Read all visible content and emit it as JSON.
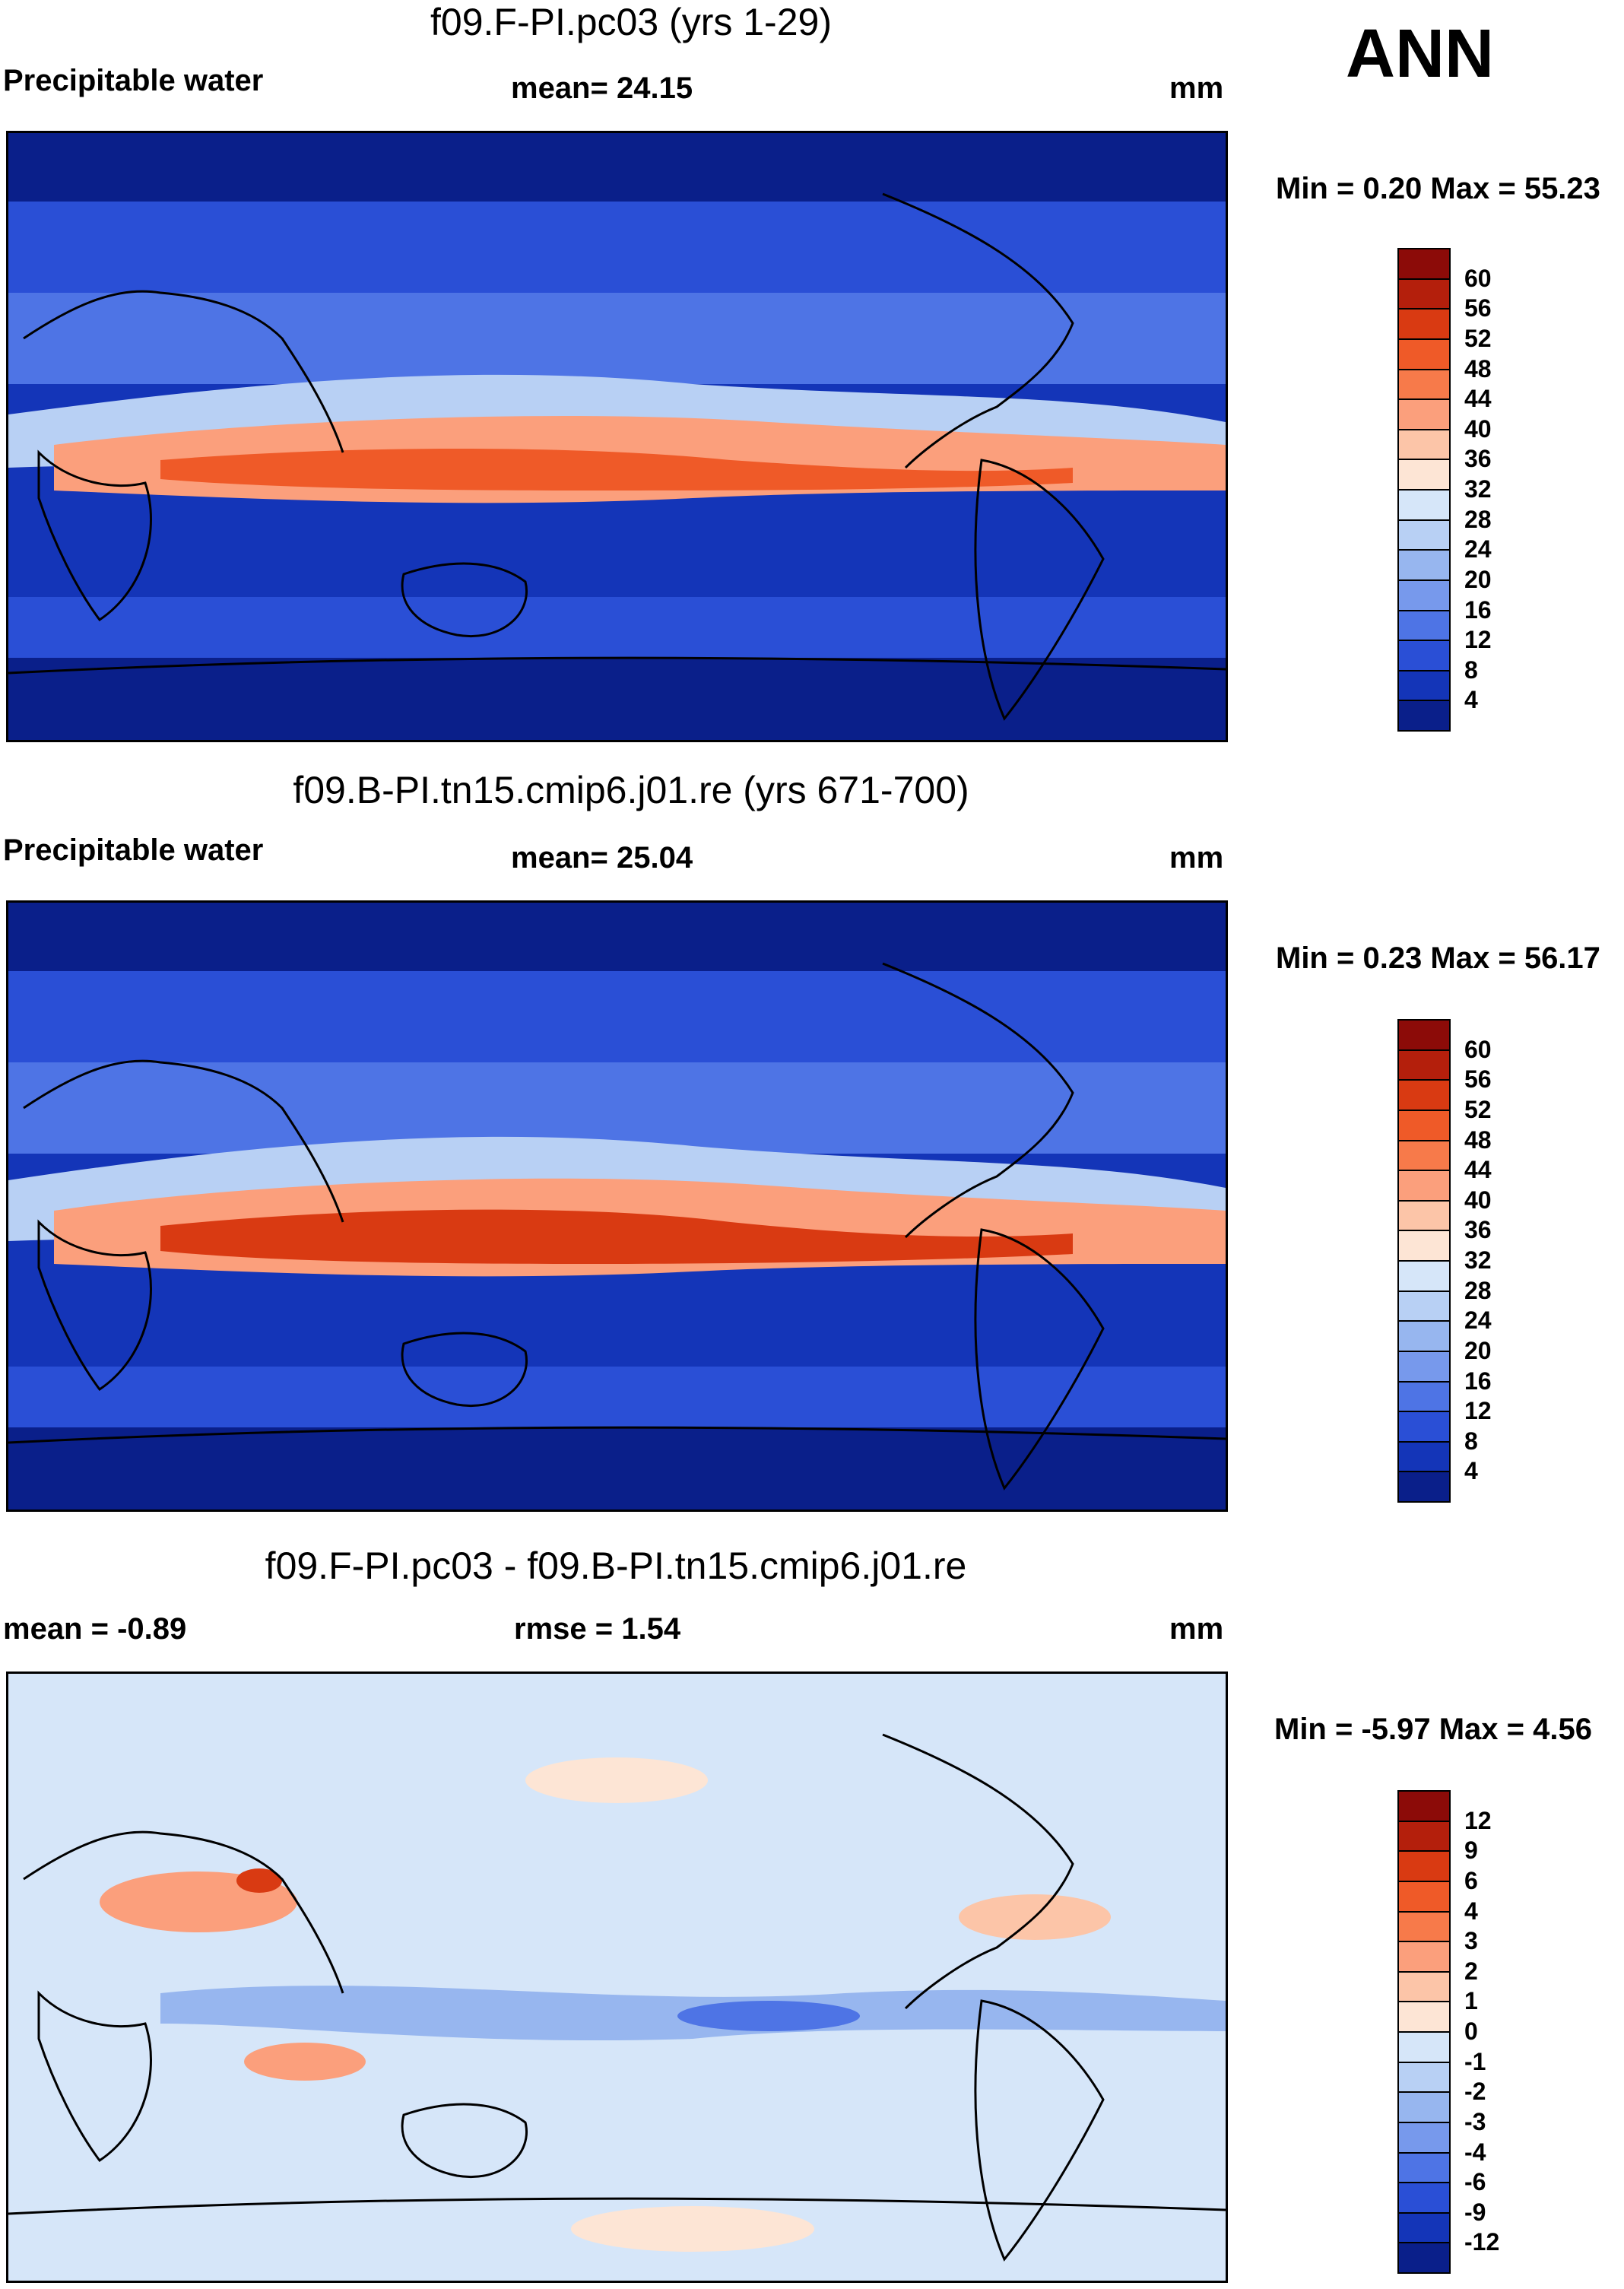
{
  "page_label": "ANN",
  "chart_data": [
    {
      "type": "heatmap",
      "title": "f09.F-PI.pc03 (yrs 1-29)",
      "variable": "Precipitable water",
      "stats": {
        "left_label": "Precipitable water",
        "mid_label": "mean=  24.15",
        "units": "mm"
      },
      "minmax": "Min =   0.20 Max =  55.23",
      "colorbar": {
        "levels": [
          "60",
          "56",
          "52",
          "48",
          "44",
          "40",
          "36",
          "32",
          "28",
          "24",
          "20",
          "16",
          "12",
          "8",
          "4"
        ],
        "colors": [
          "#8c0b08",
          "#b41f0c",
          "#d93a12",
          "#ef5a28",
          "#f77a4a",
          "#fb9f7c",
          "#fcc5a8",
          "#fde5d5",
          "#d6e6f9",
          "#b8d0f4",
          "#97b6ef",
          "#7799ec",
          "#4e74e5",
          "#2a4fd6",
          "#1435b8",
          "#0a1f8a"
        ]
      }
    },
    {
      "type": "heatmap",
      "title": "f09.B-PI.tn15.cmip6.j01.re (yrs 671-700)",
      "variable": "Precipitable water",
      "stats": {
        "left_label": "Precipitable water",
        "mid_label": "mean=  25.04",
        "units": "mm"
      },
      "minmax": "Min =   0.23 Max =  56.17",
      "colorbar": {
        "levels": [
          "60",
          "56",
          "52",
          "48",
          "44",
          "40",
          "36",
          "32",
          "28",
          "24",
          "20",
          "16",
          "12",
          "8",
          "4"
        ],
        "colors": [
          "#8c0b08",
          "#b41f0c",
          "#d93a12",
          "#ef5a28",
          "#f77a4a",
          "#fb9f7c",
          "#fcc5a8",
          "#fde5d5",
          "#d6e6f9",
          "#b8d0f4",
          "#97b6ef",
          "#7799ec",
          "#4e74e5",
          "#2a4fd6",
          "#1435b8",
          "#0a1f8a"
        ]
      }
    },
    {
      "type": "heatmap",
      "title": "f09.F-PI.pc03 - f09.B-PI.tn15.cmip6.j01.re",
      "stats": {
        "left_label": "mean =  -0.89",
        "mid_label": "rmse =   1.54",
        "units": "mm"
      },
      "minmax": "Min =  -5.97 Max =   4.56",
      "colorbar": {
        "levels": [
          "12",
          "9",
          "6",
          "4",
          "3",
          "2",
          "1",
          "0",
          "-1",
          "-2",
          "-3",
          "-4",
          "-6",
          "-9",
          "-12"
        ],
        "colors": [
          "#8c0b08",
          "#b41f0c",
          "#d93a12",
          "#ef5a28",
          "#f77a4a",
          "#fb9f7c",
          "#fcc5a8",
          "#fde5d5",
          "#d6e6f9",
          "#b8d0f4",
          "#97b6ef",
          "#7799ec",
          "#4e74e5",
          "#2a4fd6",
          "#1435b8",
          "#0a1f8a"
        ]
      }
    }
  ]
}
